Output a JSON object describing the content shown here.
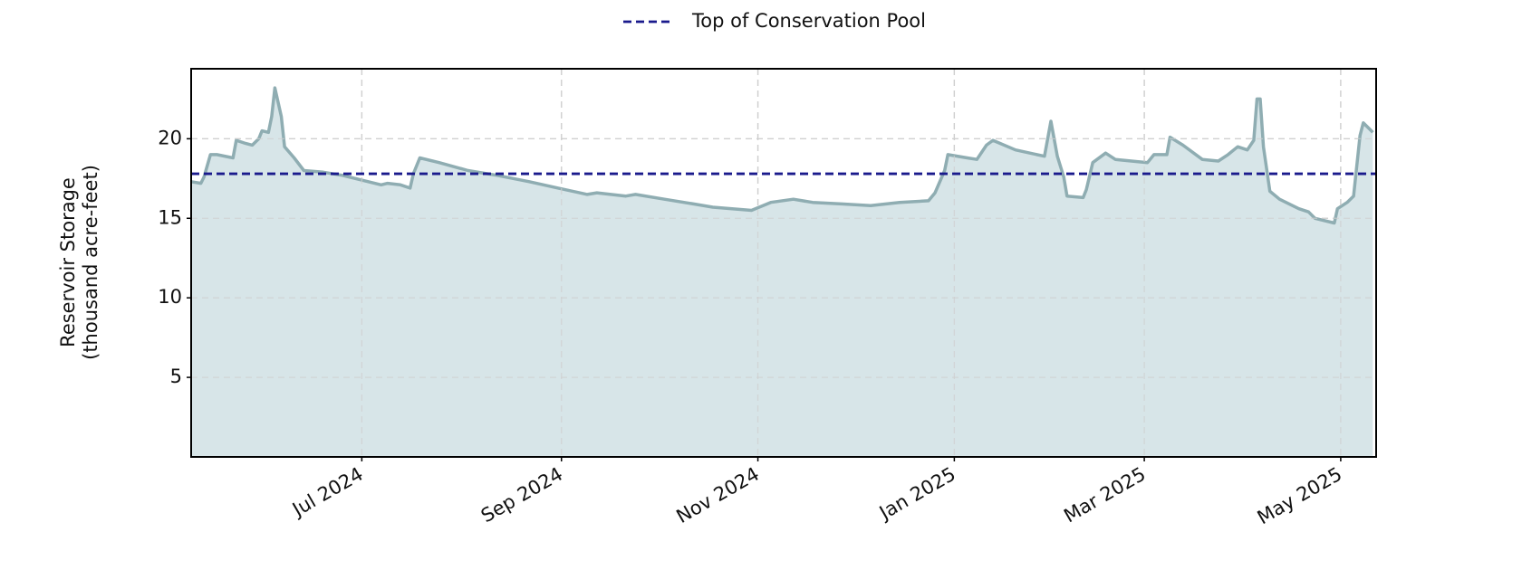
{
  "chart_data": {
    "type": "area",
    "y_label": "Reservoir Storage\n(thousand acre-feet)",
    "x": [
      "2024-05-09",
      "2024-05-12",
      "2024-05-13",
      "2024-05-15",
      "2024-05-17",
      "2024-05-22",
      "2024-05-23",
      "2024-05-26",
      "2024-05-28",
      "2024-05-30",
      "2024-05-31",
      "2024-06-02",
      "2024-06-03",
      "2024-06-04",
      "2024-06-06",
      "2024-06-07",
      "2024-06-10",
      "2024-06-13",
      "2024-06-19",
      "2024-06-25",
      "2024-07-01",
      "2024-07-07",
      "2024-07-09",
      "2024-07-13",
      "2024-07-16",
      "2024-07-17",
      "2024-07-19",
      "2024-07-25",
      "2024-08-03",
      "2024-08-12",
      "2024-08-22",
      "2024-08-31",
      "2024-09-09",
      "2024-09-12",
      "2024-09-21",
      "2024-09-24",
      "2024-10-03",
      "2024-10-12",
      "2024-10-18",
      "2024-10-30",
      "2024-11-05",
      "2024-11-12",
      "2024-11-18",
      "2024-11-27",
      "2024-12-06",
      "2024-12-15",
      "2024-12-24",
      "2024-12-26",
      "2024-12-29",
      "2024-12-30",
      "2025-01-05",
      "2025-01-08",
      "2025-01-11",
      "2025-01-13",
      "2025-01-20",
      "2025-01-29",
      "2025-01-31",
      "2025-02-02",
      "2025-02-04",
      "2025-02-05",
      "2025-02-10",
      "2025-02-11",
      "2025-02-13",
      "2025-02-17",
      "2025-02-20",
      "2025-03-02",
      "2025-03-04",
      "2025-03-08",
      "2025-03-09",
      "2025-03-13",
      "2025-03-19",
      "2025-03-24",
      "2025-03-27",
      "2025-03-30",
      "2025-04-02",
      "2025-04-04",
      "2025-04-05",
      "2025-04-06",
      "2025-04-07",
      "2025-04-09",
      "2025-04-12",
      "2025-04-18",
      "2025-04-21",
      "2025-04-23",
      "2025-04-29",
      "2025-04-30",
      "2025-05-03",
      "2025-05-05",
      "2025-05-07",
      "2025-05-08",
      "2025-05-10",
      "2025-05-11"
    ],
    "series": [
      {
        "color": "#8fadb2",
        "fill": "#d7e5e8",
        "values": [
          17.3,
          17.2,
          17.6,
          19.0,
          19.0,
          18.8,
          19.9,
          19.7,
          19.6,
          20.0,
          20.5,
          20.4,
          21.4,
          23.2,
          21.4,
          19.5,
          18.8,
          18.0,
          17.9,
          17.7,
          17.4,
          17.1,
          17.2,
          17.1,
          16.9,
          17.8,
          18.8,
          18.5,
          18.0,
          17.7,
          17.3,
          16.9,
          16.5,
          16.6,
          16.4,
          16.5,
          16.2,
          15.9,
          15.7,
          15.5,
          16.0,
          16.2,
          16.0,
          15.9,
          15.8,
          16.0,
          16.1,
          16.6,
          18.0,
          19.0,
          18.8,
          18.7,
          19.6,
          19.9,
          19.3,
          18.9,
          21.1,
          18.9,
          17.6,
          16.4,
          16.3,
          16.8,
          18.5,
          19.1,
          18.7,
          18.5,
          19.0,
          19.0,
          20.1,
          19.6,
          18.7,
          18.6,
          19.0,
          19.5,
          19.3,
          19.9,
          22.5,
          22.5,
          19.5,
          16.7,
          16.2,
          15.6,
          15.4,
          15.0,
          14.7,
          15.6,
          16.0,
          16.4,
          20.2,
          21.0,
          20.6,
          20.4
        ]
      }
    ],
    "reference_line": {
      "name": "Top of Conservation Pool",
      "value": 17.8,
      "color": "#1a1a8c"
    },
    "xlim": [
      "2024-05-09",
      "2025-05-12"
    ],
    "xticks": [
      {
        "value": "2024-07-01",
        "label": "Jul 2024"
      },
      {
        "value": "2024-09-01",
        "label": "Sep 2024"
      },
      {
        "value": "2024-11-01",
        "label": "Nov 2024"
      },
      {
        "value": "2025-01-01",
        "label": "Jan 2025"
      },
      {
        "value": "2025-03-01",
        "label": "Mar 2025"
      },
      {
        "value": "2025-05-01",
        "label": "May 2025"
      }
    ],
    "ylim": [
      0,
      24.4
    ],
    "yticks": [
      5,
      10,
      15,
      20
    ],
    "grid": true
  }
}
